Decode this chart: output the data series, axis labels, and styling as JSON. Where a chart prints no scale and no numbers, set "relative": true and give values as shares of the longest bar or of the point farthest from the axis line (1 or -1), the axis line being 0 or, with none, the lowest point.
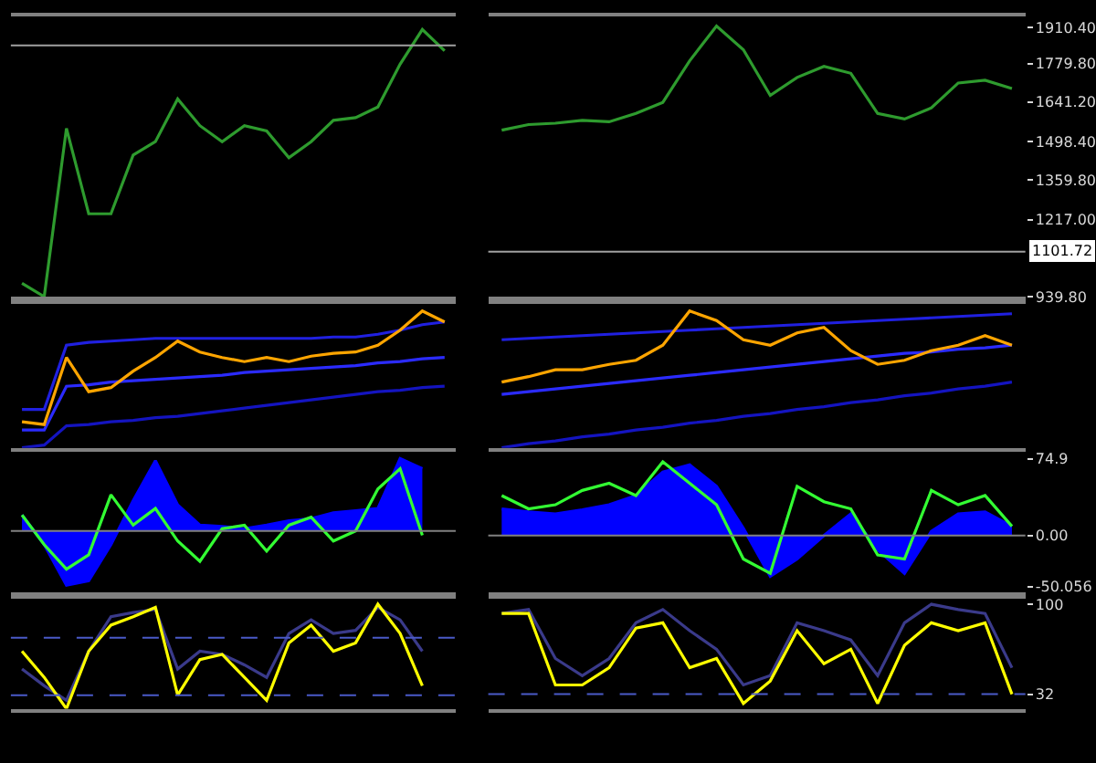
{
  "chart_data": [
    {
      "type": "line",
      "relative": true,
      "categories": [
        null,
        null,
        null,
        null,
        null,
        null,
        null,
        null,
        null,
        null,
        null,
        null,
        null,
        null,
        null,
        null,
        null,
        null,
        null,
        null
      ],
      "series": [
        {
          "color": "#2e9b2e",
          "values": [
            0.05,
            0,
            0.63,
            0.31,
            0.31,
            0.53,
            0.58,
            0.74,
            0.64,
            0.58,
            0.64,
            0.62,
            0.52,
            0.58,
            0.66,
            0.67,
            0.71,
            0.87,
            1,
            0.92
          ]
        }
      ],
      "ref_lines": [
        {
          "axis": "y",
          "value": 0.94,
          "color": "#a0a0a0"
        }
      ]
    },
    {
      "type": "line",
      "categories": [
        null,
        null,
        null,
        null,
        null,
        null,
        null,
        null,
        null,
        null,
        null,
        null,
        null,
        null,
        null,
        null,
        null,
        null,
        null,
        null
      ],
      "series": [
        {
          "color": "#2e9b2e",
          "values": [
            1540,
            1560,
            1565,
            1575,
            1570,
            1600,
            1640,
            1790,
            1915,
            1830,
            1665,
            1730,
            1770,
            1745,
            1600,
            1580,
            1620,
            1710,
            1720,
            1690
          ]
        }
      ],
      "ylim": [
        939.8,
        1951
      ],
      "tick_labels": "y",
      "yticks": [
        {
          "value": 939.8,
          "label": "939.80"
        },
        {
          "value": 1217,
          "label": "1217.00"
        },
        {
          "value": 1359.8,
          "label": "1359.80"
        },
        {
          "value": 1498.4,
          "label": "1498.40"
        },
        {
          "value": 1641.2,
          "label": "1641.20"
        },
        {
          "value": 1779.8,
          "label": "1779.80"
        },
        {
          "value": 1910.4,
          "label": "1910.40"
        }
      ],
      "ref_lines": [
        {
          "axis": "y",
          "value": 1101.72,
          "label": "1101.72",
          "color": "#a0a0a0"
        }
      ]
    },
    {
      "type": "line",
      "relative": true,
      "categories": [
        null,
        null,
        null,
        null,
        null,
        null,
        null,
        null,
        null,
        null,
        null,
        null,
        null,
        null,
        null,
        null,
        null,
        null,
        null,
        null
      ],
      "series": [
        {
          "color": "#2020e0",
          "values": [
            0.28,
            0.28,
            0.75,
            0.77,
            0.78,
            0.79,
            0.8,
            0.8,
            0.8,
            0.8,
            0.8,
            0.8,
            0.8,
            0.8,
            0.81,
            0.81,
            0.83,
            0.86,
            0.9,
            0.92
          ]
        },
        {
          "color": "#2b2bff",
          "values": [
            0.13,
            0.13,
            0.45,
            0.46,
            0.48,
            0.49,
            0.5,
            0.51,
            0.52,
            0.53,
            0.55,
            0.56,
            0.57,
            0.58,
            0.59,
            0.6,
            0.62,
            0.63,
            0.65,
            0.66
          ]
        },
        {
          "color": "#1414c0",
          "values": [
            0,
            0.02,
            0.16,
            0.17,
            0.19,
            0.2,
            0.22,
            0.23,
            0.25,
            0.27,
            0.29,
            0.31,
            0.33,
            0.35,
            0.37,
            0.39,
            0.41,
            0.42,
            0.44,
            0.45
          ]
        },
        {
          "color": "#ffa500",
          "values": [
            0.19,
            0.17,
            0.66,
            0.41,
            0.44,
            0.56,
            0.66,
            0.78,
            0.7,
            0.66,
            0.63,
            0.66,
            0.63,
            0.67,
            0.69,
            0.7,
            0.75,
            0.86,
            1,
            0.92
          ]
        }
      ]
    },
    {
      "type": "line",
      "relative": true,
      "categories": [
        null,
        null,
        null,
        null,
        null,
        null,
        null,
        null,
        null,
        null,
        null,
        null,
        null,
        null,
        null,
        null,
        null,
        null,
        null,
        null
      ],
      "series": [
        {
          "color": "#2020e0",
          "values": [
            0.79,
            0.8,
            0.81,
            0.82,
            0.83,
            0.84,
            0.85,
            0.86,
            0.87,
            0.88,
            0.89,
            0.9,
            0.91,
            0.92,
            0.93,
            0.94,
            0.95,
            0.96,
            0.97,
            0.98
          ]
        },
        {
          "color": "#2b2bff",
          "values": [
            0.39,
            0.41,
            0.43,
            0.45,
            0.47,
            0.49,
            0.51,
            0.53,
            0.55,
            0.57,
            0.59,
            0.61,
            0.63,
            0.65,
            0.67,
            0.69,
            0.7,
            0.72,
            0.73,
            0.75
          ]
        },
        {
          "color": "#1414c0",
          "values": [
            0,
            0.03,
            0.05,
            0.08,
            0.1,
            0.13,
            0.15,
            0.18,
            0.2,
            0.23,
            0.25,
            0.28,
            0.3,
            0.33,
            0.35,
            0.38,
            0.4,
            0.43,
            0.45,
            0.48
          ]
        },
        {
          "color": "#ffa500",
          "values": [
            0.48,
            0.52,
            0.57,
            0.57,
            0.61,
            0.64,
            0.75,
            1,
            0.93,
            0.79,
            0.75,
            0.84,
            0.88,
            0.71,
            0.61,
            0.64,
            0.71,
            0.75,
            0.82,
            0.75
          ]
        }
      ]
    },
    {
      "type": "line",
      "relative": true,
      "categories": [
        null,
        null,
        null,
        null,
        null,
        null,
        null,
        null,
        null,
        null,
        null,
        null,
        null,
        null,
        null,
        null,
        null,
        null,
        null,
        null
      ],
      "series": [
        {
          "type": "area",
          "color": "#0000ff",
          "values": [
            0.22,
            -0.19,
            -0.75,
            -0.69,
            -0.19,
            0.42,
            0.97,
            0.36,
            0.08,
            0.06,
            0.03,
            0.08,
            0.14,
            0.17,
            0.25,
            0.28,
            0.31,
            1,
            0.86,
            null
          ]
        },
        {
          "color": "#33ff33",
          "values": [
            0.22,
            -0.19,
            -0.53,
            -0.33,
            0.5,
            0.08,
            0.31,
            -0.14,
            -0.42,
            0.03,
            0.08,
            -0.28,
            0.08,
            0.19,
            -0.14,
            0,
            0.58,
            0.86,
            -0.06,
            null
          ]
        }
      ],
      "ref_lines": [
        {
          "axis": "y",
          "value": 0,
          "color": "#808080"
        }
      ]
    },
    {
      "type": "line",
      "categories": [
        null,
        null,
        null,
        null,
        null,
        null,
        null,
        null,
        null,
        null,
        null,
        null,
        null,
        null,
        null,
        null,
        null,
        null,
        null,
        null
      ],
      "series": [
        {
          "type": "area",
          "color": "#0000ff",
          "values": [
            26,
            23,
            21,
            25,
            30,
            39,
            62,
            69,
            48,
            7,
            -40,
            -23,
            0,
            21,
            -14,
            -37,
            4,
            21,
            23,
            9
          ]
        },
        {
          "color": "#33ff33",
          "values": [
            39,
            26,
            30,
            44,
            51,
            39,
            72,
            51,
            30,
            -23,
            -37,
            48,
            33,
            26,
            -19,
            -23,
            44,
            30,
            39,
            9
          ]
        }
      ],
      "ylim": [
        -55.4,
        82
      ],
      "tick_labels": "y",
      "yticks": [
        -50.056,
        {
          "value": 0,
          "label": "0.00"
        },
        74.9
      ],
      "ref_lines": [
        {
          "axis": "y",
          "value": 0,
          "color": "#808080"
        }
      ]
    },
    {
      "type": "line",
      "relative": true,
      "categories": [
        null,
        null,
        null,
        null,
        null,
        null,
        null,
        null,
        null,
        null,
        null,
        null,
        null,
        null,
        null,
        null,
        null,
        null,
        null,
        null
      ],
      "series": [
        {
          "color": "#3a3a8a",
          "values": [
            0.38,
            0.22,
            0.08,
            0.55,
            0.88,
            0.92,
            0.95,
            0.38,
            0.55,
            0.52,
            0.42,
            0.3,
            0.72,
            0.85,
            0.72,
            0.75,
            0.97,
            0.85,
            0.55,
            null
          ]
        },
        {
          "color": "#ffff00",
          "values": [
            0.55,
            0.3,
            0,
            0.55,
            0.8,
            0.88,
            0.97,
            0.13,
            0.47,
            0.52,
            0.3,
            0.08,
            0.63,
            0.8,
            0.55,
            0.63,
            1,
            0.72,
            0.22,
            null
          ]
        }
      ],
      "ref_lines": [
        {
          "axis": "y",
          "value": 0.68,
          "color": "#4a5ac8",
          "line_style": "dashed"
        },
        {
          "axis": "y",
          "value": 0.13,
          "color": "#4a5ac8",
          "line_style": "dashed"
        }
      ]
    },
    {
      "type": "line",
      "categories": [
        null,
        null,
        null,
        null,
        null,
        null,
        null,
        null,
        null,
        null,
        null,
        null,
        null,
        null,
        null,
        null,
        null,
        null,
        null,
        null
      ],
      "series": [
        {
          "color": "#3a3a8a",
          "values": [
            93,
            96,
            59,
            46,
            59,
            86,
            96,
            80,
            66,
            39,
            46,
            86,
            80,
            73,
            46,
            86,
            100,
            96,
            93,
            52
          ]
        },
        {
          "color": "#ffff00",
          "values": [
            93,
            93,
            39,
            39,
            52,
            82,
            86,
            52,
            59,
            25,
            42,
            80,
            55,
            66,
            25,
            69,
            86,
            80,
            86,
            32
          ]
        }
      ],
      "ylim": [
        21,
        104
      ],
      "tick_labels": "y",
      "yticks": [
        32,
        100
      ],
      "ref_lines": [
        {
          "axis": "y",
          "value": 32,
          "color": "#4a5ac8",
          "line_style": "dashed"
        }
      ]
    }
  ]
}
